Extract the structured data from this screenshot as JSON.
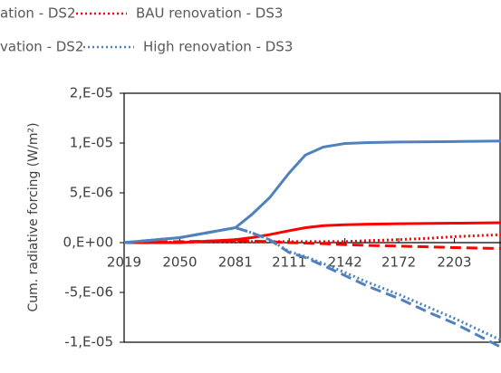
{
  "chart_data": {
    "type": "line",
    "y_label": "Cum. radiative forcing (W/m²)",
    "x": [
      2019,
      2050,
      2081,
      2090,
      2100,
      2111,
      2120,
      2130,
      2142,
      2155,
      2172,
      2190,
      2203,
      2229
    ],
    "xlim": [
      2019,
      2229
    ],
    "xticks": [
      2019,
      2050,
      2081,
      2111,
      2142,
      2172,
      2203
    ],
    "ylim": [
      -1e-05,
      1.5e-05
    ],
    "yticks": [
      {
        "value": 1.5e-05,
        "label": "2,E-05"
      },
      {
        "value": 1e-05,
        "label": "1,E-05"
      },
      {
        "value": 5e-06,
        "label": "5,E-06"
      },
      {
        "value": 0,
        "label": "0,E+00"
      },
      {
        "value": -5e-06,
        "label": "-5,E-06"
      },
      {
        "value": -1e-05,
        "label": "-1,E-05"
      }
    ],
    "series": [
      {
        "color": "#ff0000",
        "dash": "solid",
        "values": [
          0,
          0,
          3e-07,
          5e-07,
          8e-07,
          1.2e-06,
          1.5e-06,
          1.7e-06,
          1.8e-06,
          1.85e-06,
          1.9e-06,
          1.93e-06,
          1.95e-06,
          2e-06
        ]
      },
      {
        "name": "ation - DS2",
        "color": "#ff0000",
        "dash": "dashed",
        "values": [
          0,
          1e-07,
          2e-07,
          1.5e-07,
          1e-07,
          0,
          -5e-08,
          -1e-07,
          -2e-07,
          -2.8e-07,
          -3.5e-07,
          -4.3e-07,
          -5e-07,
          -6e-07
        ]
      },
      {
        "name": "BAU renovation - DS3",
        "color": "#ff0000",
        "dash": "dotted",
        "values": [
          0,
          5e-08,
          1e-07,
          1e-07,
          1e-07,
          1e-07,
          1e-07,
          1e-07,
          1e-07,
          2e-07,
          3e-07,
          4.5e-07,
          6e-07,
          8e-07
        ]
      },
      {
        "color": "#4f81bd",
        "dash": "solid",
        "values": [
          0,
          5e-07,
          1.5e-06,
          2.8e-06,
          4.5e-06,
          7e-06,
          8.8e-06,
          9.6e-06,
          9.95e-06,
          1.005e-05,
          1.01e-05,
          1.013e-05,
          1.015e-05,
          1.02e-05
        ]
      },
      {
        "name": "vation - DS2",
        "color": "#4f81bd",
        "dash": "dashed",
        "values": [
          0,
          5e-07,
          1.5e-06,
          1e-06,
          3e-07,
          -1e-06,
          -1.5e-06,
          -2.3e-06,
          -3.3e-06,
          -4.4e-06,
          -5.6e-06,
          -7.1e-06,
          -8.1e-06,
          -1.05e-05
        ]
      },
      {
        "name": "High renovation - DS3",
        "color": "#4f81bd",
        "dash": "dotted",
        "values": [
          0,
          5e-07,
          1.5e-06,
          1e-06,
          3e-07,
          -9e-07,
          -1.4e-06,
          -2.1e-06,
          -3e-06,
          -4e-06,
          -5.2e-06,
          -6.6e-06,
          -7.6e-06,
          -9.8e-06
        ]
      }
    ]
  }
}
